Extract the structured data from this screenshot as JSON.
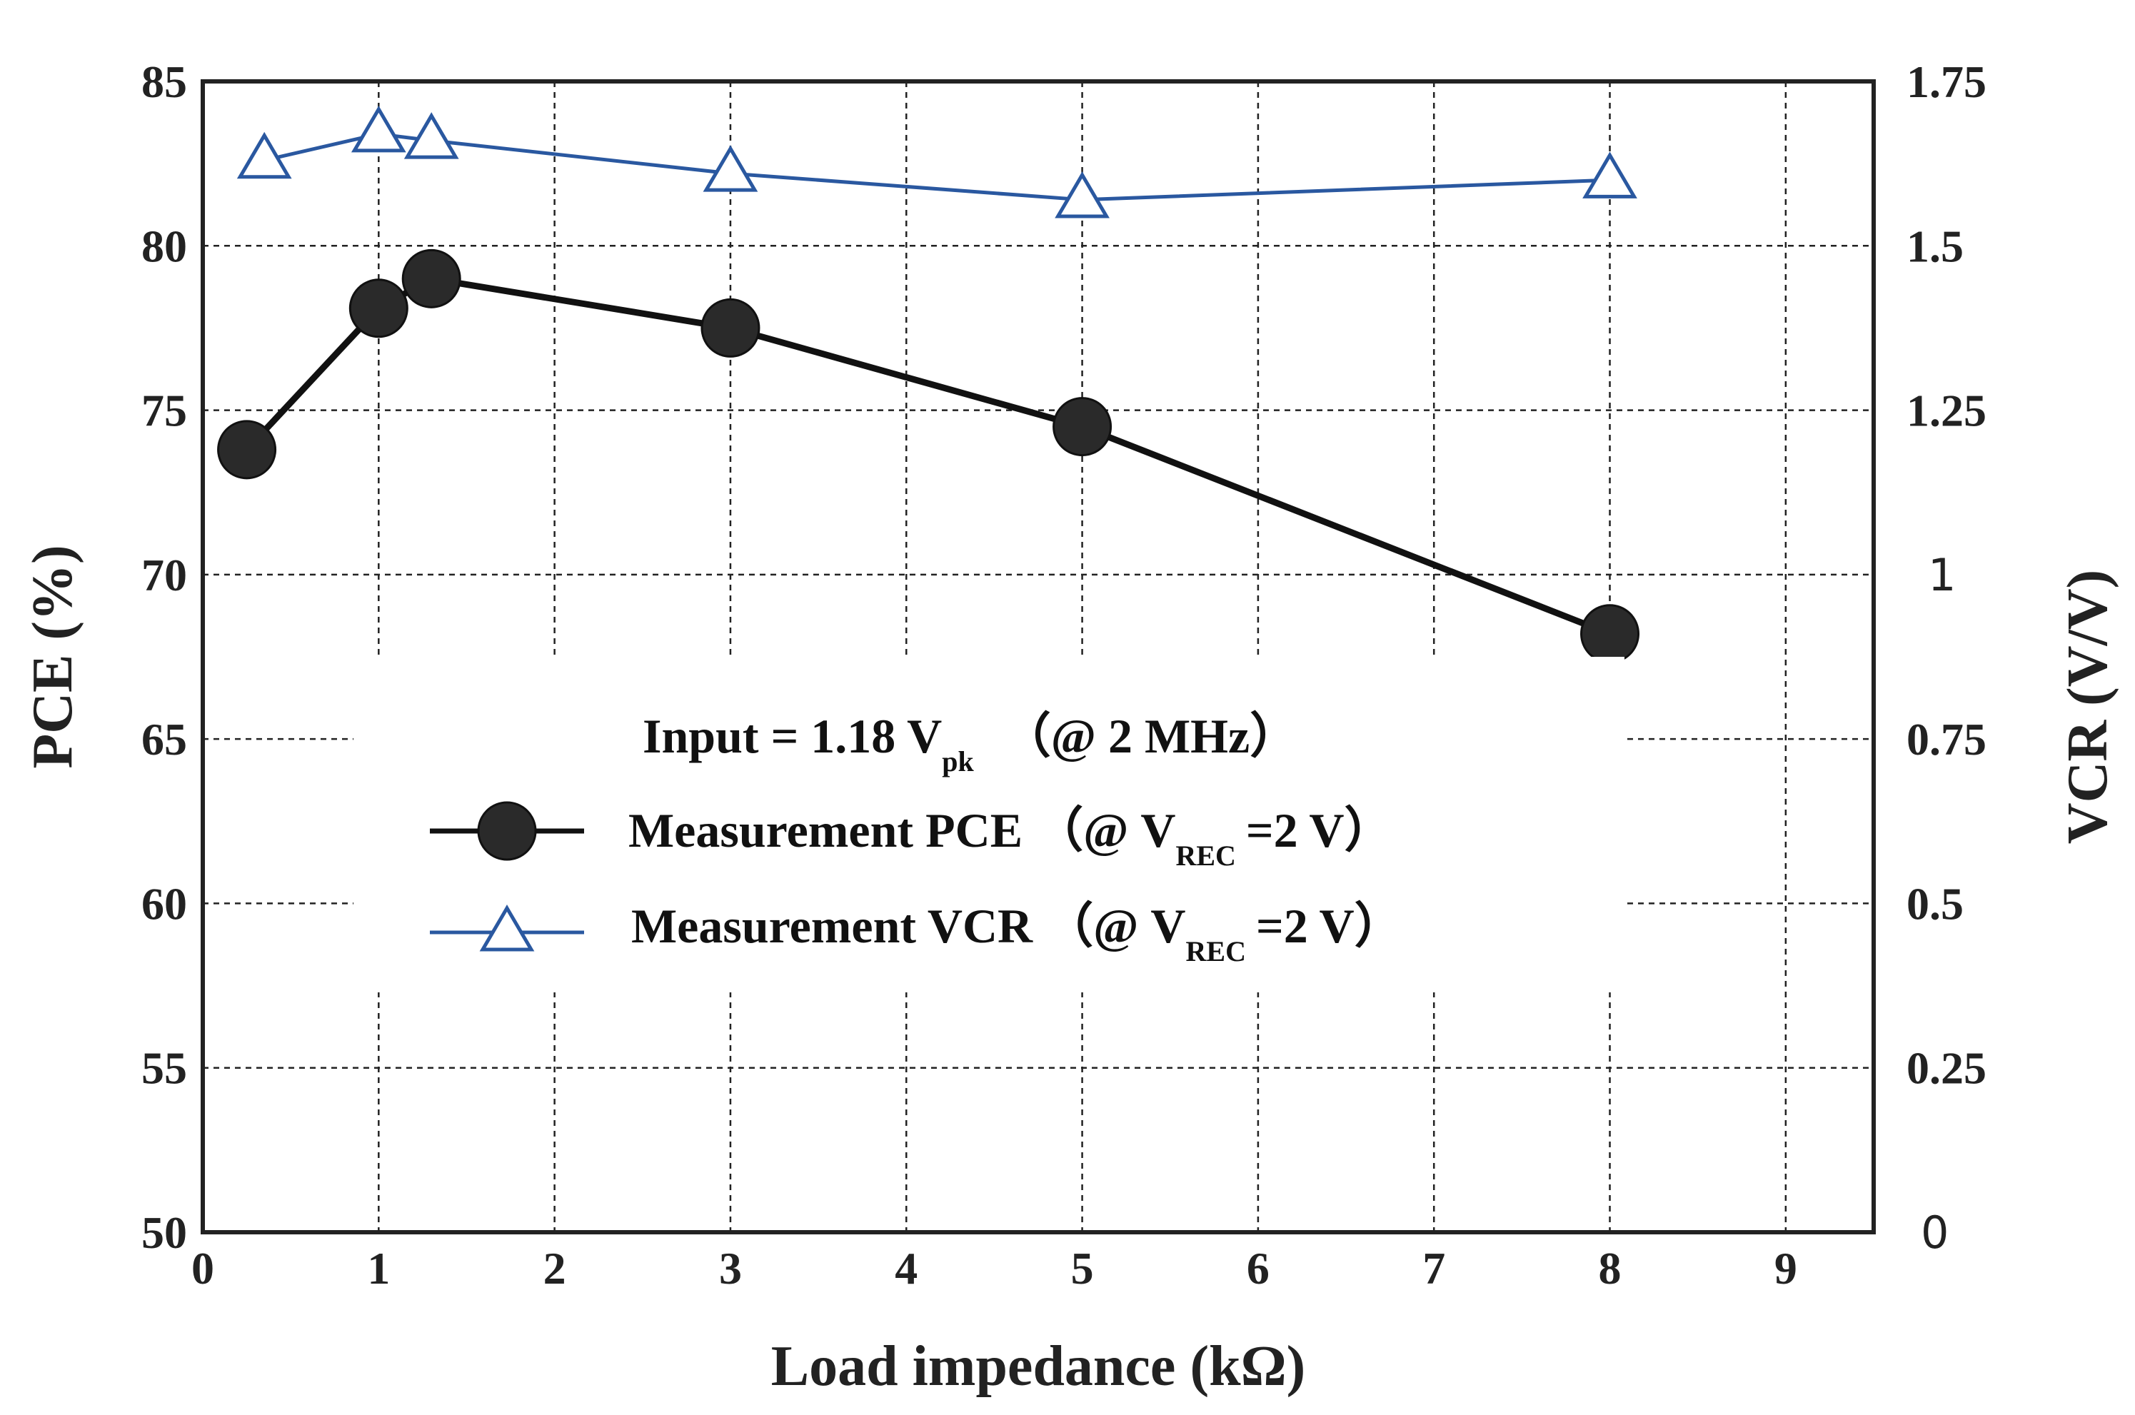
{
  "chart_data": {
    "type": "line",
    "xlabel": "Load impedance (kΩ)",
    "ylabel_left": "PCE (%)",
    "ylabel_right": "VCR (V/V)",
    "xlim": [
      0,
      9.5
    ],
    "ylim_left": [
      50,
      85
    ],
    "ylim_right": [
      0,
      1.75
    ],
    "x_ticks": [
      "0",
      "1",
      "2",
      "3",
      "4",
      "5",
      "6",
      "7",
      "8",
      "9"
    ],
    "y_left_ticks": [
      "50",
      "55",
      "60",
      "65",
      "70",
      "75",
      "80",
      "85"
    ],
    "y_right_ticks": [
      "0",
      "0.25",
      "0.5",
      "0.75",
      "1",
      "1.25",
      "1.5",
      "1.75"
    ],
    "grid": true,
    "legend": {
      "placement": "center",
      "title_main": "Input = 1.18 V",
      "title_sub": "pk",
      "title_tail": "（@ 2 MHz）",
      "entries": [
        {
          "main": "Measurement PCE （@ V",
          "sub": "REC",
          "tail": "=2 V）"
        },
        {
          "main": "Measurement VCR （@ V",
          "sub": "REC",
          "tail": "=2 V）"
        }
      ]
    },
    "series": [
      {
        "name": "Measurement PCE",
        "axis": "left",
        "color": "#111111",
        "marker": "circle",
        "x": [
          0.25,
          1.0,
          1.3,
          3.0,
          5.0,
          8.0
        ],
        "y": [
          73.8,
          78.1,
          79.0,
          77.5,
          74.5,
          68.2
        ]
      },
      {
        "name": "Measurement VCR",
        "axis": "right",
        "color": "#2a58a0",
        "marker": "triangle",
        "x": [
          0.35,
          1.0,
          1.3,
          3.0,
          5.0,
          8.0
        ],
        "y": [
          1.63,
          1.67,
          1.66,
          1.61,
          1.57,
          1.6
        ]
      }
    ]
  }
}
